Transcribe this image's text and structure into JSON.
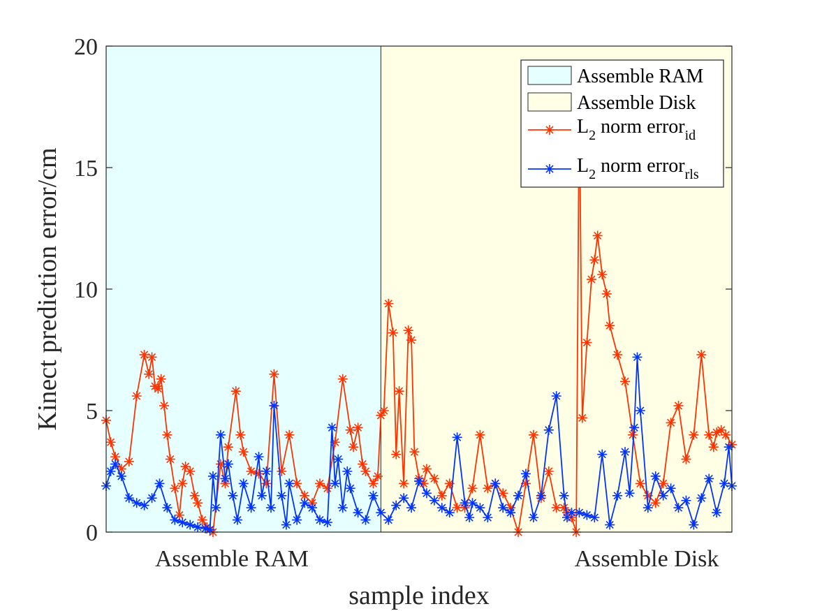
{
  "chart_data": {
    "type": "line",
    "title": "",
    "xlabel": "sample index",
    "ylabel": "Kinect prediction error/cm",
    "xlim": [
      0,
      410
    ],
    "ylim": [
      0,
      20
    ],
    "yticks": [
      "0",
      "5",
      "10",
      "15",
      "20"
    ],
    "xcategory_labels": [
      "Assemble RAM",
      "Assemble Disk"
    ],
    "grid": false,
    "legend_position": "top-right",
    "regions": [
      {
        "name": "Assemble RAM",
        "x": [
          0,
          180
        ],
        "color": "#e6ffff"
      },
      {
        "name": "Assemble Disk",
        "x": [
          180,
          410
        ],
        "color": "#ffffe6"
      }
    ],
    "series": [
      {
        "name": "L2 norm error_id",
        "legend_base": "L",
        "legend_sub1": "2",
        "legend_mid": " norm error",
        "legend_sub2": "id",
        "color": "#ff3300",
        "marker": "*",
        "x": [
          0,
          3,
          6,
          10,
          15,
          20,
          25,
          28,
          30,
          32,
          34,
          36,
          38,
          40,
          42,
          45,
          48,
          50,
          52,
          55,
          58,
          60,
          63,
          66,
          70,
          75,
          78,
          80,
          85,
          88,
          90,
          95,
          100,
          105,
          110,
          115,
          120,
          125,
          130,
          135,
          140,
          145,
          150,
          155,
          160,
          162,
          165,
          168,
          170,
          175,
          178,
          180,
          182,
          185,
          188,
          190,
          192,
          195,
          198,
          200,
          202,
          205,
          208,
          210,
          215,
          220,
          225,
          230,
          235,
          240,
          245,
          250,
          255,
          260,
          265,
          270,
          275,
          280,
          285,
          290,
          295,
          300,
          302,
          305,
          308,
          310,
          312,
          315,
          318,
          320,
          322,
          325,
          328,
          330,
          335,
          340,
          345,
          350,
          355,
          360,
          365,
          370,
          375,
          380,
          385,
          390,
          395,
          398,
          400,
          403,
          406,
          410
        ],
        "y": [
          4.6,
          3.7,
          3.1,
          2.6,
          2.9,
          5.6,
          7.3,
          6.5,
          7.2,
          6.0,
          5.9,
          6.3,
          5.2,
          4.0,
          3.0,
          1.8,
          0.7,
          2.0,
          2.7,
          2.5,
          1.5,
          1.2,
          0.5,
          0.2,
          0.0,
          2.8,
          2.0,
          3.5,
          5.8,
          4.0,
          3.3,
          2.5,
          2.4,
          2.0,
          6.5,
          2.5,
          4.0,
          2.0,
          1.5,
          1.2,
          2.0,
          1.8,
          3.7,
          6.3,
          4.2,
          3.5,
          4.3,
          2.8,
          2.5,
          2.0,
          2.3,
          4.8,
          5.0,
          9.4,
          8.2,
          3.2,
          5.8,
          2.0,
          8.3,
          7.9,
          3.3,
          2.2,
          2.0,
          2.6,
          2.2,
          1.5,
          2.0,
          1.0,
          1.0,
          1.8,
          4.0,
          1.8,
          2.0,
          1.6,
          1.0,
          0.0,
          2.0,
          4.0,
          1.4,
          2.5,
          1.0,
          1.0,
          0.8,
          0.6,
          0.0,
          18.0,
          4.7,
          7.8,
          10.4,
          11.2,
          12.2,
          10.6,
          9.8,
          8.5,
          7.3,
          6.2,
          4.0,
          2.0,
          1.5,
          1.2,
          2.0,
          4.5,
          5.2,
          3.0,
          4.0,
          7.3,
          4.0,
          3.5,
          4.1,
          4.2,
          4.0,
          3.6
        ]
      },
      {
        "name": "L2 norm error_rls",
        "legend_base": "L",
        "legend_sub1": "2",
        "legend_mid": " norm error",
        "legend_sub2": "rls",
        "color": "#0033ff",
        "marker": "*",
        "x": [
          0,
          3,
          6,
          10,
          15,
          20,
          25,
          30,
          35,
          40,
          45,
          50,
          55,
          60,
          65,
          68,
          70,
          72,
          75,
          78,
          80,
          83,
          86,
          90,
          95,
          100,
          102,
          105,
          108,
          110,
          115,
          118,
          120,
          125,
          130,
          135,
          140,
          145,
          148,
          150,
          152,
          155,
          158,
          160,
          165,
          170,
          175,
          180,
          185,
          190,
          195,
          200,
          205,
          210,
          215,
          220,
          225,
          230,
          235,
          238,
          240,
          245,
          250,
          255,
          260,
          265,
          270,
          275,
          280,
          285,
          290,
          295,
          300,
          302,
          305,
          310,
          315,
          320,
          325,
          330,
          335,
          340,
          343,
          346,
          348,
          350,
          355,
          360,
          365,
          370,
          375,
          380,
          385,
          390,
          395,
          400,
          405,
          408,
          410
        ],
        "y": [
          1.9,
          2.5,
          2.8,
          2.3,
          1.4,
          1.2,
          1.1,
          1.4,
          2.0,
          1.0,
          0.5,
          0.4,
          0.3,
          0.2,
          0.15,
          0.1,
          2.3,
          1.0,
          4.0,
          2.2,
          2.8,
          1.5,
          0.5,
          2.0,
          1.0,
          3.1,
          1.5,
          2.5,
          1.0,
          5.2,
          1.5,
          0.3,
          2.0,
          0.5,
          1.2,
          1.0,
          0.5,
          0.4,
          4.3,
          2.0,
          3.0,
          1.0,
          2.5,
          1.8,
          0.8,
          0.5,
          1.5,
          0.8,
          0.5,
          1.1,
          1.4,
          1.0,
          2.1,
          1.6,
          1.3,
          1.0,
          0.8,
          3.9,
          1.2,
          0.6,
          1.2,
          1.0,
          0.6,
          2.0,
          1.0,
          0.8,
          1.5,
          2.4,
          0.6,
          1.5,
          4.2,
          5.6,
          1.5,
          0.6,
          0.8,
          0.8,
          0.7,
          0.6,
          3.2,
          0.3,
          1.5,
          3.3,
          1.6,
          4.3,
          7.2,
          5.0,
          1.0,
          2.3,
          1.5,
          1.8,
          1.0,
          1.3,
          0.3,
          1.4,
          2.2,
          0.8,
          2.0,
          3.5,
          1.9
        ]
      }
    ]
  }
}
